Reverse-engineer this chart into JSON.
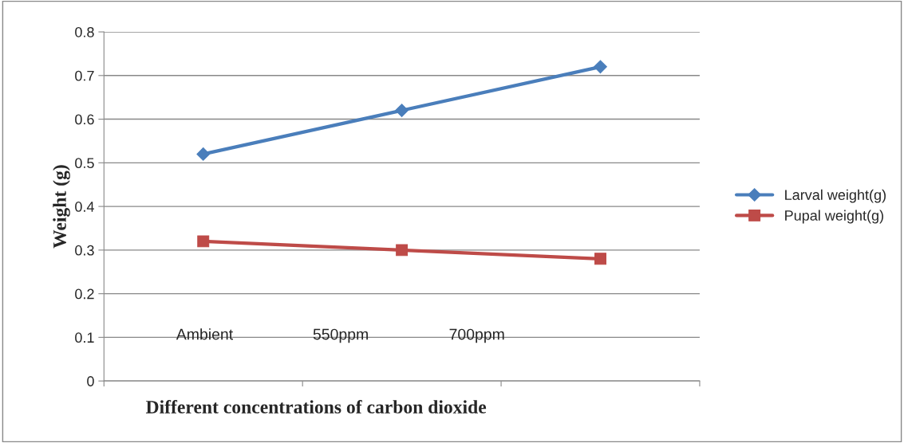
{
  "chart_data": {
    "type": "line",
    "xlabel": "Different concentrations of carbon dioxide",
    "ylabel": "Weight (g)",
    "categories": [
      null,
      null,
      null
    ],
    "series": [
      {
        "name": "Larval weight(g)",
        "color": "#4a7ebb",
        "marker": "diamond",
        "values": [
          0.52,
          0.62,
          0.72
        ]
      },
      {
        "name": "Pupal weight(g)",
        "color": "#be4b48",
        "marker": "square",
        "values": [
          0.32,
          0.3,
          0.28
        ]
      }
    ],
    "ylim": [
      0,
      0.8
    ],
    "yticks": [
      0,
      0.1,
      0.2,
      0.3,
      0.4,
      0.5,
      0.6,
      0.7,
      0.8
    ],
    "grid": "y",
    "legend": "right",
    "annotations": [
      "Ambient",
      "550ppm",
      "700ppm"
    ]
  }
}
